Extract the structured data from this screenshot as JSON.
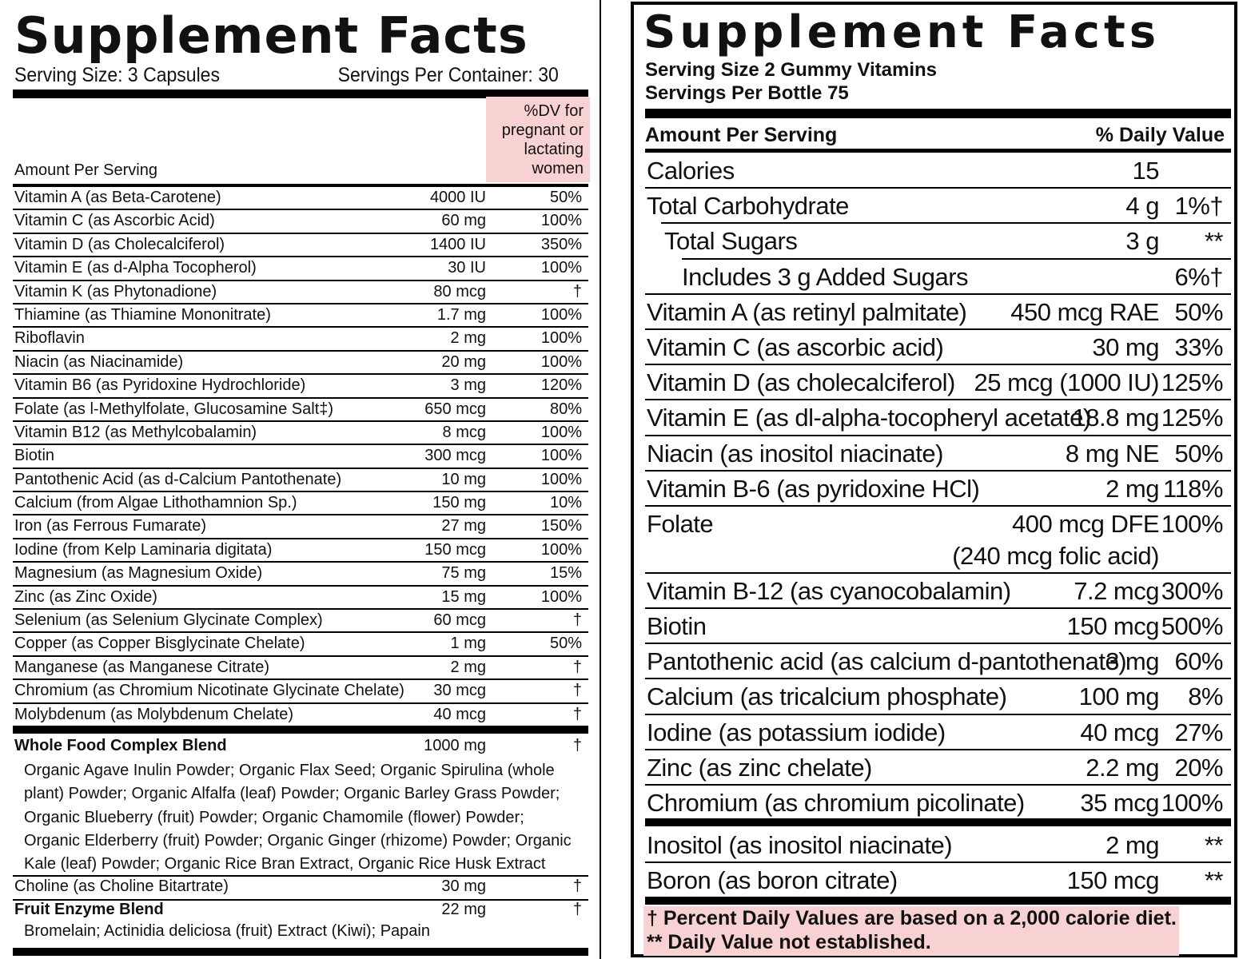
{
  "left": {
    "title": "Supplement Facts",
    "serving_size": "Serving Size: 3 Capsules",
    "servings_per_container": "Servings Per Container: 30",
    "dv_header": "%DV for pregnant or lactating women",
    "amount_header": "Amount Per Serving",
    "nutrients": [
      {
        "name": "Vitamin A (as Beta-Carotene)",
        "amount": "4000 IU",
        "dv": "50%"
      },
      {
        "name": "Vitamin C (as Ascorbic Acid)",
        "amount": "60 mg",
        "dv": "100%"
      },
      {
        "name": "Vitamin D (as Cholecalciferol)",
        "amount": "1400 IU",
        "dv": "350%"
      },
      {
        "name": "Vitamin E (as d-Alpha Tocopherol)",
        "amount": "30 IU",
        "dv": "100%"
      },
      {
        "name": "Vitamin K (as Phytonadione)",
        "amount": "80 mcg",
        "dv": "†"
      },
      {
        "name": "Thiamine (as Thiamine Mononitrate)",
        "amount": "1.7 mg",
        "dv": "100%"
      },
      {
        "name": "Riboflavin",
        "amount": "2 mg",
        "dv": "100%"
      },
      {
        "name": "Niacin (as Niacinamide)",
        "amount": "20 mg",
        "dv": "100%"
      },
      {
        "name": "Vitamin B6 (as Pyridoxine Hydrochloride)",
        "amount": "3 mg",
        "dv": "120%"
      },
      {
        "name": "Folate (as l-Methylfolate, Glucosamine Salt‡)",
        "amount": "650 mcg",
        "dv": "80%"
      },
      {
        "name": "Vitamin B12 (as Methylcobalamin)",
        "amount": "8 mcg",
        "dv": "100%"
      },
      {
        "name": "Biotin",
        "amount": "300 mcg",
        "dv": "100%"
      },
      {
        "name": "Pantothenic Acid (as d-Calcium Pantothenate)",
        "amount": "10 mg",
        "dv": "100%"
      },
      {
        "name": "Calcium (from Algae Lithothamnion Sp.)",
        "amount": "150 mg",
        "dv": "10%"
      },
      {
        "name": "Iron (as Ferrous Fumarate)",
        "amount": "27 mg",
        "dv": "150%"
      },
      {
        "name": "Iodine (from Kelp Laminaria digitata)",
        "amount": "150 mcg",
        "dv": "100%"
      },
      {
        "name": "Magnesium (as Magnesium Oxide)",
        "amount": "75 mg",
        "dv": "15%"
      },
      {
        "name": "Zinc (as Zinc Oxide)",
        "amount": "15 mg",
        "dv": "100%"
      },
      {
        "name": "Selenium (as Selenium Glycinate Complex)",
        "amount": "60 mcg",
        "dv": "†"
      },
      {
        "name": "Copper (as Copper Bisglycinate Chelate)",
        "amount": "1 mg",
        "dv": "50%"
      },
      {
        "name": "Manganese (as Manganese Citrate)",
        "amount": "2 mg",
        "dv": "†"
      },
      {
        "name": "Chromium (as Chromium Nicotinate Glycinate Chelate)",
        "amount": "30 mcg",
        "dv": "†"
      },
      {
        "name": "Molybdenum (as Molybdenum Chelate)",
        "amount": "40 mcg",
        "dv": "†"
      }
    ],
    "whole_food": {
      "name": "Whole Food Complex Blend",
      "amount": "1000 mg",
      "dv": "†",
      "ingredients": "Organic Agave Inulin Powder; Organic Flax Seed; Organic Spirulina (whole plant) Powder; Organic Alfalfa (leaf) Powder; Organic Barley Grass Powder; Organic Blueberry (fruit) Powder; Organic Chamomile (flower) Powder; Organic Elderberry (fruit) Powder; Organic Ginger (rhizome) Powder; Organic Kale (leaf) Powder; Organic Rice Bran Extract, Organic Rice Husk Extract"
    },
    "choline": {
      "name": "Choline (as Choline Bitartrate)",
      "amount": "30 mg",
      "dv": "†"
    },
    "fruit_enzyme": {
      "name": "Fruit Enzyme Blend",
      "amount": "22 mg",
      "dv": "†",
      "ingredients": "Bromelain; Actinidia deliciosa (fruit) Extract (Kiwi); Papain"
    }
  },
  "right": {
    "title": "Supplement Facts",
    "serving_size": "Serving Size 2 Gummy Vitamins",
    "servings_per_bottle": "Servings Per Bottle 75",
    "amount_header": "Amount Per Serving",
    "dv_header": "% Daily Value",
    "rows": [
      {
        "name": "Calories",
        "amount": "15",
        "dv": ""
      },
      {
        "name": "Total Carbohydrate",
        "amount": "4 g",
        "dv": "1%†"
      },
      {
        "name": "Total Sugars",
        "amount": "3 g",
        "dv": "**"
      },
      {
        "name": "Includes 3 g Added Sugars",
        "amount": "",
        "dv": "6%†"
      },
      {
        "name": "Vitamin A (as retinyl palmitate)",
        "amount": "450 mcg RAE",
        "dv": "50%"
      },
      {
        "name": "Vitamin C (as ascorbic acid)",
        "amount": "30 mg",
        "dv": "33%"
      },
      {
        "name": "Vitamin D (as cholecalciferol)",
        "amount": "25 mcg (1000 IU)",
        "dv": "125%"
      },
      {
        "name": "Vitamin E (as dl-alpha-tocopheryl acetate)",
        "amount": "18.8 mg",
        "dv": "125%"
      },
      {
        "name": "Niacin (as inositol niacinate)",
        "amount": "8 mg NE",
        "dv": "50%"
      },
      {
        "name": "Vitamin B-6 (as pyridoxine HCl)",
        "amount": "2 mg",
        "dv": "118%"
      },
      {
        "name": "Folate",
        "amount": "400 mcg DFE",
        "amount2": "(240 mcg folic acid)",
        "dv": "100%"
      },
      {
        "name": "Vitamin B-12 (as cyanocobalamin)",
        "amount": "7.2 mcg",
        "dv": "300%"
      },
      {
        "name": "Biotin",
        "amount": "150 mcg",
        "dv": "500%"
      },
      {
        "name": "Pantothenic acid (as calcium d-pantothenate)",
        "amount": "3 mg",
        "dv": "60%"
      },
      {
        "name": "Calcium (as tricalcium phosphate)",
        "amount": "100 mg",
        "dv": "8%"
      },
      {
        "name": "Iodine (as potassium iodide)",
        "amount": "40 mcg",
        "dv": "27%"
      },
      {
        "name": "Zinc (as zinc chelate)",
        "amount": "2.2 mg",
        "dv": "20%"
      },
      {
        "name": "Chromium (as chromium picolinate)",
        "amount": "35 mcg",
        "dv": "100%"
      }
    ],
    "rows_after": [
      {
        "name": "Inositol (as inositol niacinate)",
        "amount": "2 mg",
        "dv": "**"
      },
      {
        "name": "Boron (as boron citrate)",
        "amount": "150 mcg",
        "dv": "**"
      }
    ],
    "footnote1": "† Percent Daily Values are based on a 2,000 calorie diet.",
    "footnote2": "** Daily Value not established.",
    "highlight_color": "#f8d2d2"
  }
}
